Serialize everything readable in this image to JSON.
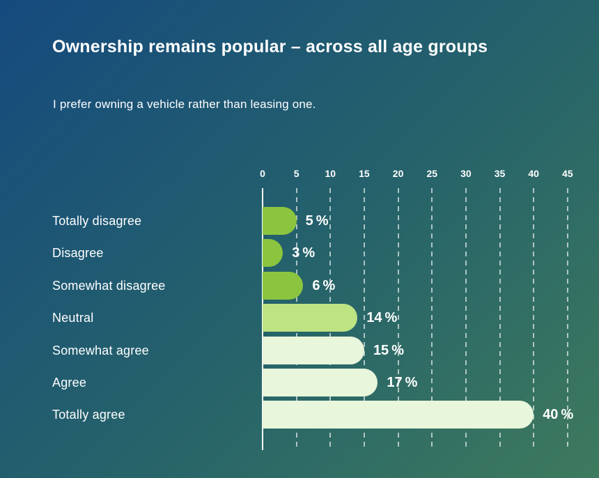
{
  "slide": {
    "title": "Ownership remains popular – across all age groups",
    "subtitle": "I prefer owning a vehicle rather than leasing one.",
    "background_colors": {
      "top_left": "#154a7e",
      "center": "#26636a",
      "bottom_right": "#3e7a5d"
    },
    "text_color": "#ffffff"
  },
  "chart_data": {
    "type": "bar",
    "orientation": "horizontal",
    "title": "Ownership remains popular – across all age groups",
    "subtitle": "I prefer owning a vehicle rather than leasing one.",
    "categories": [
      "Totally disagree",
      "Disagree",
      "Somewhat disagree",
      "Neutral",
      "Somewhat agree",
      "Agree",
      "Totally agree"
    ],
    "values": [
      5,
      3,
      6,
      14,
      15,
      17,
      40
    ],
    "value_suffix": "%",
    "value_labels": [
      "5 %",
      "3 %",
      "6 %",
      "14 %",
      "15 %",
      "17 %",
      "40 %"
    ],
    "bar_colors": [
      "#8bc53f",
      "#8bc53f",
      "#8bc53f",
      "#bee383",
      "#e8f6dc",
      "#e8f6dc",
      "#e8f6dc"
    ],
    "xlim": [
      0,
      45
    ],
    "x_ticks": [
      0,
      5,
      10,
      15,
      20,
      25,
      30,
      35,
      40,
      45
    ],
    "grid": "dashed-vertical-white",
    "axis_line_color": "#ffffff",
    "label_color": "#ffffff",
    "legend_position": "none"
  }
}
